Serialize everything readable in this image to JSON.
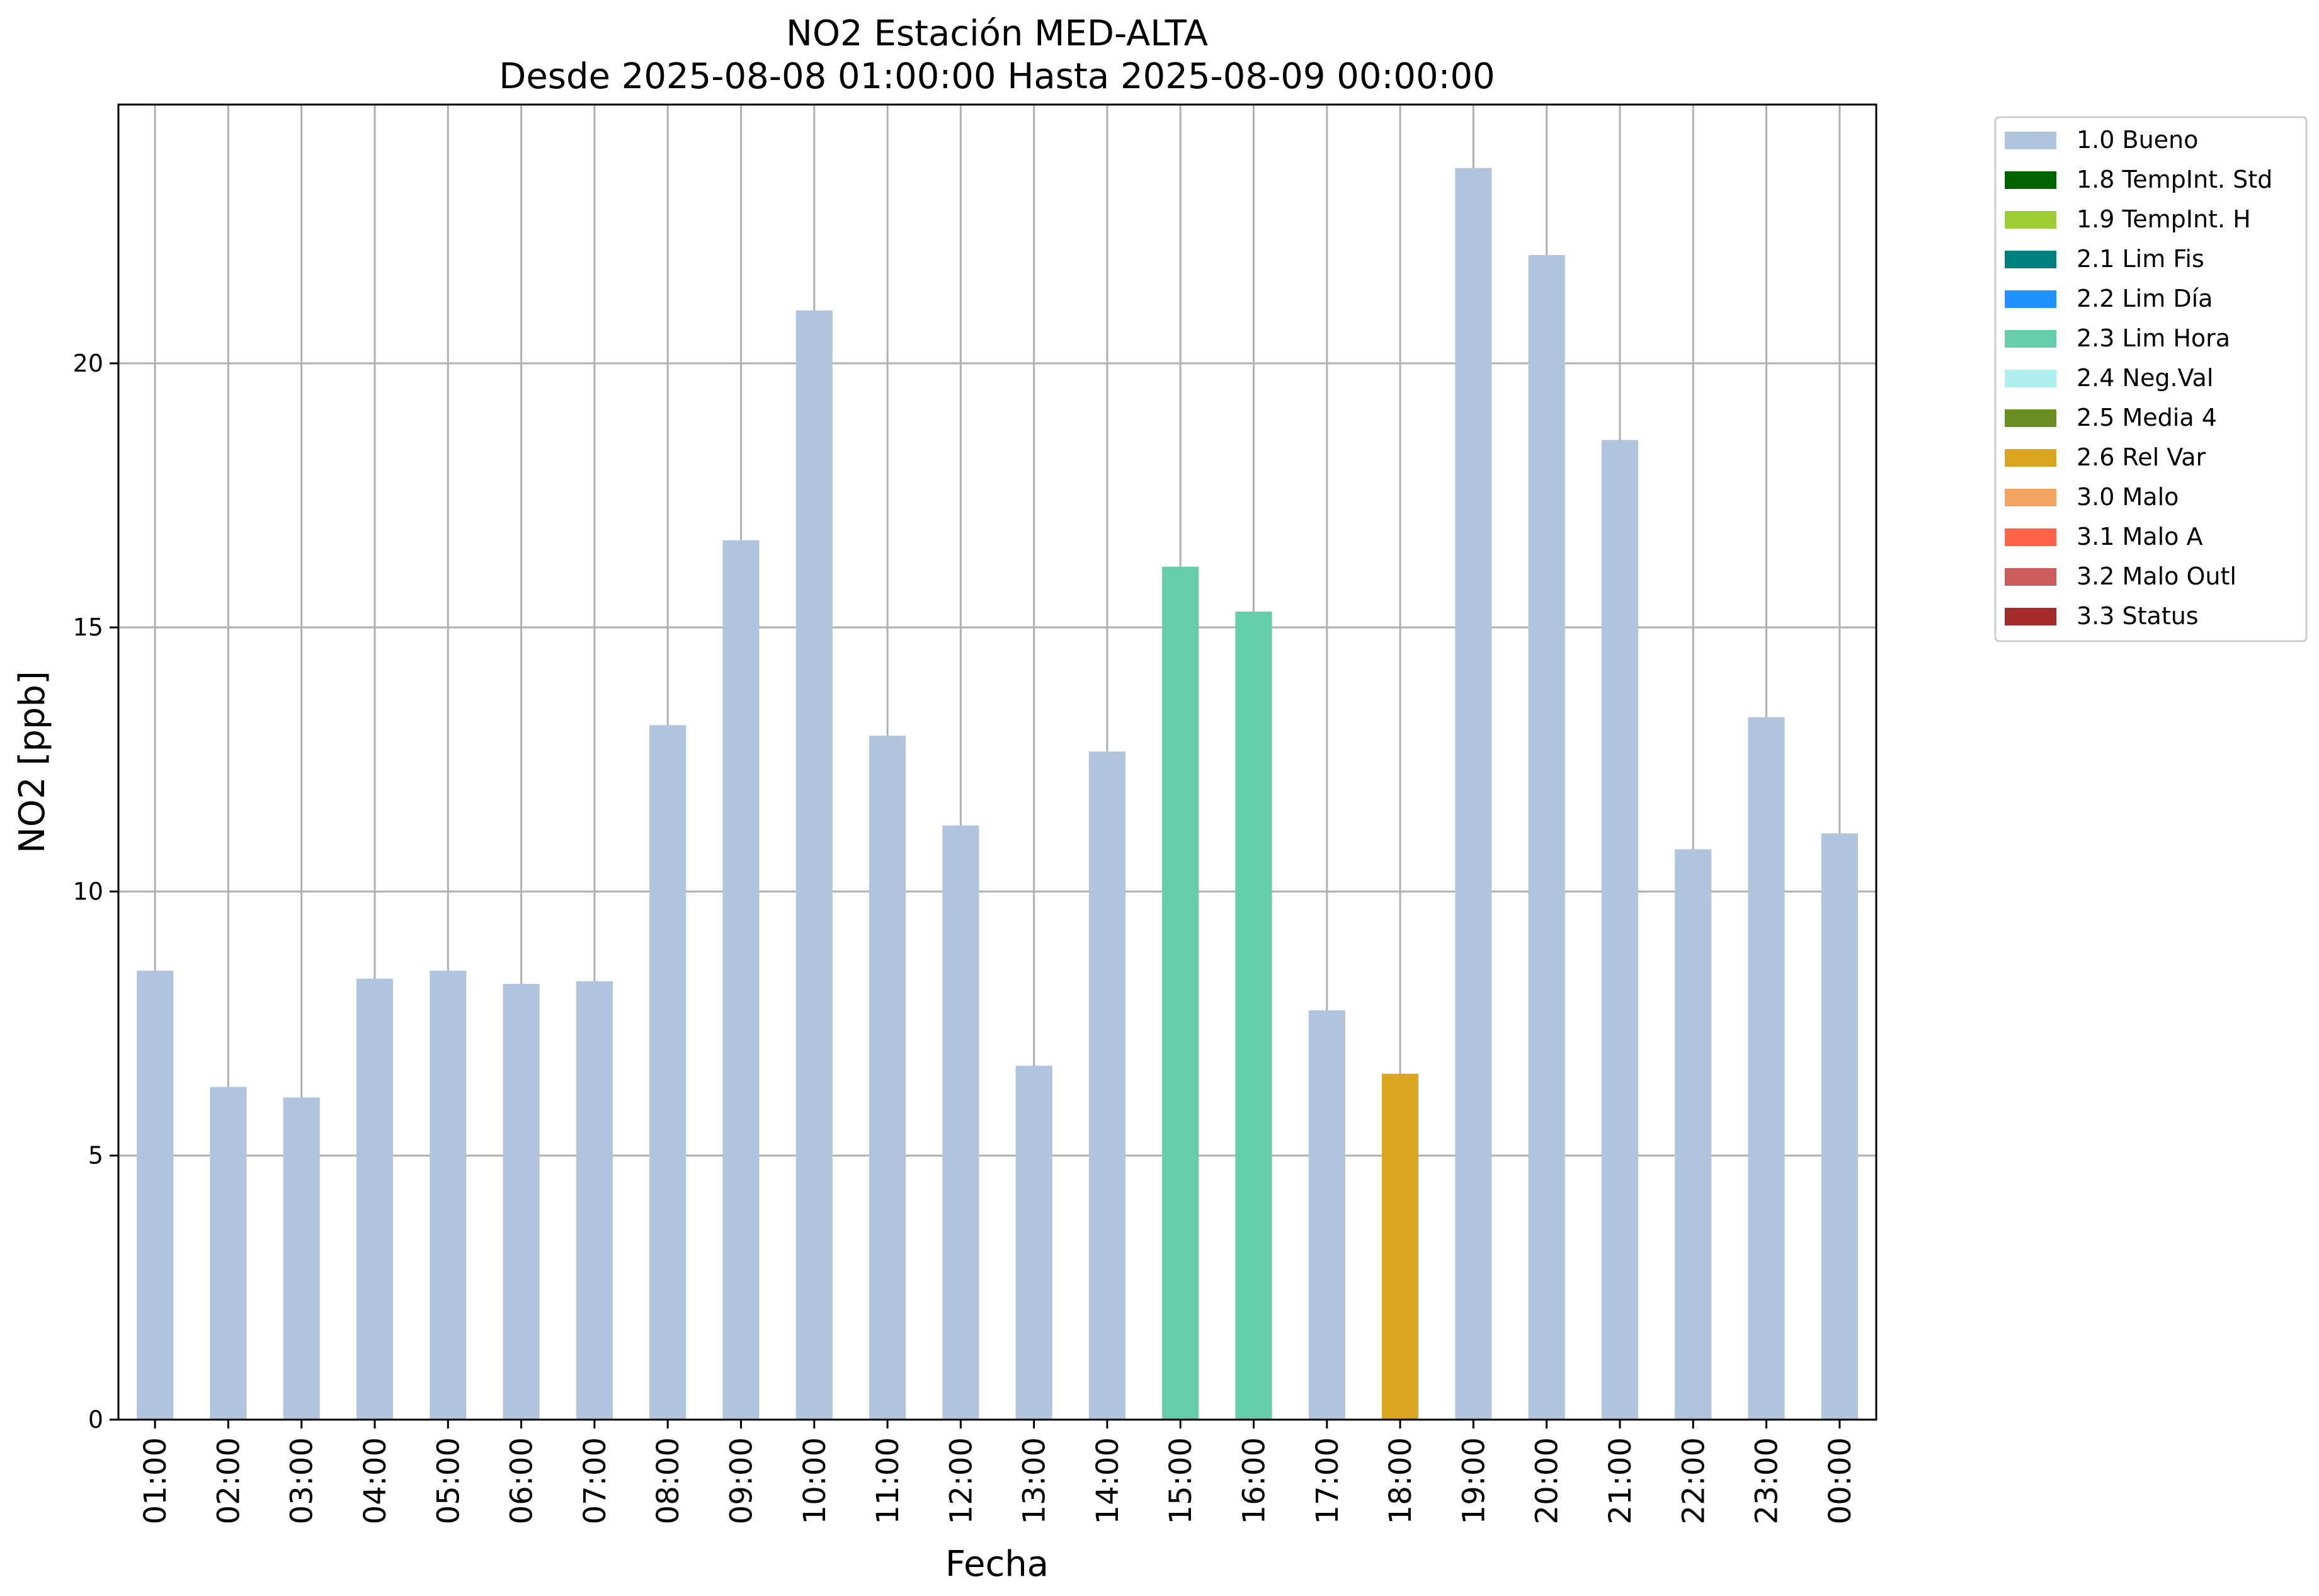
{
  "chart_data": {
    "type": "bar",
    "title": "NO2 Estación MED-ALTA",
    "subtitle": "Desde 2025-08-08 01:00:00 Hasta 2025-08-09 00:00:00",
    "xlabel": "Fecha",
    "ylabel": "NO2 [ppb]",
    "ylim": [
      0,
      24.9
    ],
    "yticks": [
      0,
      5,
      10,
      15,
      20
    ],
    "grid": true,
    "legend_position": "outside-top-right",
    "categories": [
      "01:00",
      "02:00",
      "03:00",
      "04:00",
      "05:00",
      "06:00",
      "07:00",
      "08:00",
      "09:00",
      "10:00",
      "11:00",
      "12:00",
      "13:00",
      "14:00",
      "15:00",
      "16:00",
      "17:00",
      "18:00",
      "19:00",
      "20:00",
      "21:00",
      "22:00",
      "23:00",
      "00:00"
    ],
    "values": [
      8.5,
      6.3,
      6.1,
      8.35,
      8.5,
      8.25,
      8.3,
      13.15,
      16.65,
      21.0,
      12.95,
      11.25,
      6.7,
      12.65,
      16.15,
      15.3,
      7.75,
      6.55,
      23.7,
      22.05,
      18.55,
      10.8,
      13.3,
      11.1
    ],
    "bar_flags": [
      "1.0 Bueno",
      "1.0 Bueno",
      "1.0 Bueno",
      "1.0 Bueno",
      "1.0 Bueno",
      "1.0 Bueno",
      "1.0 Bueno",
      "1.0 Bueno",
      "1.0 Bueno",
      "1.0 Bueno",
      "1.0 Bueno",
      "1.0 Bueno",
      "1.0 Bueno",
      "1.0 Bueno",
      "2.3 Lim Hora",
      "2.3 Lim Hora",
      "1.0 Bueno",
      "2.6 Rel Var",
      "1.0 Bueno",
      "1.0 Bueno",
      "1.0 Bueno",
      "1.0 Bueno",
      "1.0 Bueno",
      "1.0 Bueno"
    ],
    "legend": [
      {
        "label": "1.0 Bueno",
        "color": "#b0c4de"
      },
      {
        "label": "1.8 TempInt. Std",
        "color": "#006400"
      },
      {
        "label": "1.9 TempInt. H",
        "color": "#9acd32"
      },
      {
        "label": "2.1 Lim Fis",
        "color": "#008080"
      },
      {
        "label": "2.2 Lim Día",
        "color": "#1e90ff"
      },
      {
        "label": "2.3 Lim Hora",
        "color": "#66cdaa"
      },
      {
        "label": "2.4 Neg.Val",
        "color": "#afeeee"
      },
      {
        "label": "2.5 Media 4",
        "color": "#6b8e23"
      },
      {
        "label": "2.6 Rel Var",
        "color": "#daa520"
      },
      {
        "label": "3.0 Malo",
        "color": "#f4a460"
      },
      {
        "label": "3.1 Malo A",
        "color": "#ff6347"
      },
      {
        "label": "3.2 Malo Outl",
        "color": "#cd5c5c"
      },
      {
        "label": "3.3 Status",
        "color": "#a52a2a"
      }
    ]
  }
}
